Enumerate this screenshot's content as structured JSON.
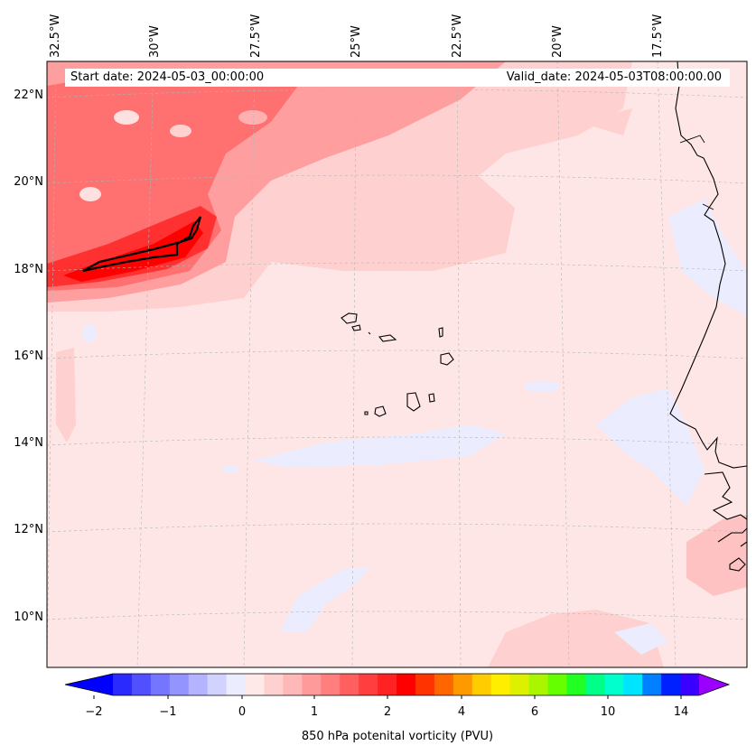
{
  "map": {
    "start_date": "Start date: 2024-05-03_00:00:00",
    "valid_date": "Valid_date: 2024-05-03T08:00:00.00",
    "lon_labels": [
      "32.5°W",
      "30°W",
      "27.5°W",
      "25°W",
      "22.5°W",
      "20°W",
      "17.5°W"
    ],
    "lat_labels": [
      "22°N",
      "20°N",
      "18°N",
      "16°N",
      "14°N",
      "12°N",
      "10°N"
    ]
  },
  "colorbar": {
    "label": "850 hPa potenital vorticity (PVU)",
    "ticks": [
      "−2",
      "−1",
      "0",
      "1",
      "2",
      "4",
      "6",
      "10",
      "14"
    ],
    "colors": [
      "#0000ff",
      "#2a2aff",
      "#5050ff",
      "#7575ff",
      "#9494ff",
      "#b3b3ff",
      "#d2d2ff",
      "#ececff",
      "#ffe8e8",
      "#ffd0d0",
      "#ffb8b8",
      "#ff9a9a",
      "#ff7e7e",
      "#ff5f5f",
      "#ff3f3f",
      "#ff2222",
      "#ff0000",
      "#ff3300",
      "#ff6600",
      "#ff9900",
      "#ffcc00",
      "#ffee00",
      "#ddf000",
      "#aaf500",
      "#66ff00",
      "#22ff22",
      "#00ff88",
      "#00ffcc",
      "#00e5ff",
      "#0080ff",
      "#0020ff",
      "#3a00ff",
      "#9900ff"
    ]
  }
}
